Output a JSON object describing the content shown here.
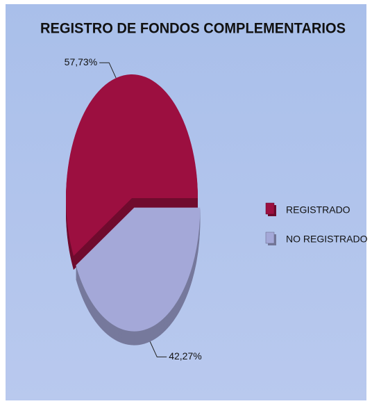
{
  "chart_data": {
    "type": "pie",
    "title": "REGISTRO DE FONDOS COMPLEMENTARIOS",
    "categories": [
      "REGISTRADO",
      "NO REGISTRADO"
    ],
    "values": [
      57.73,
      42.27
    ],
    "value_labels": [
      "57,73%",
      "42,27%"
    ],
    "colors": [
      "#9c0f40",
      "#a4a8d8"
    ],
    "legend": "right"
  }
}
